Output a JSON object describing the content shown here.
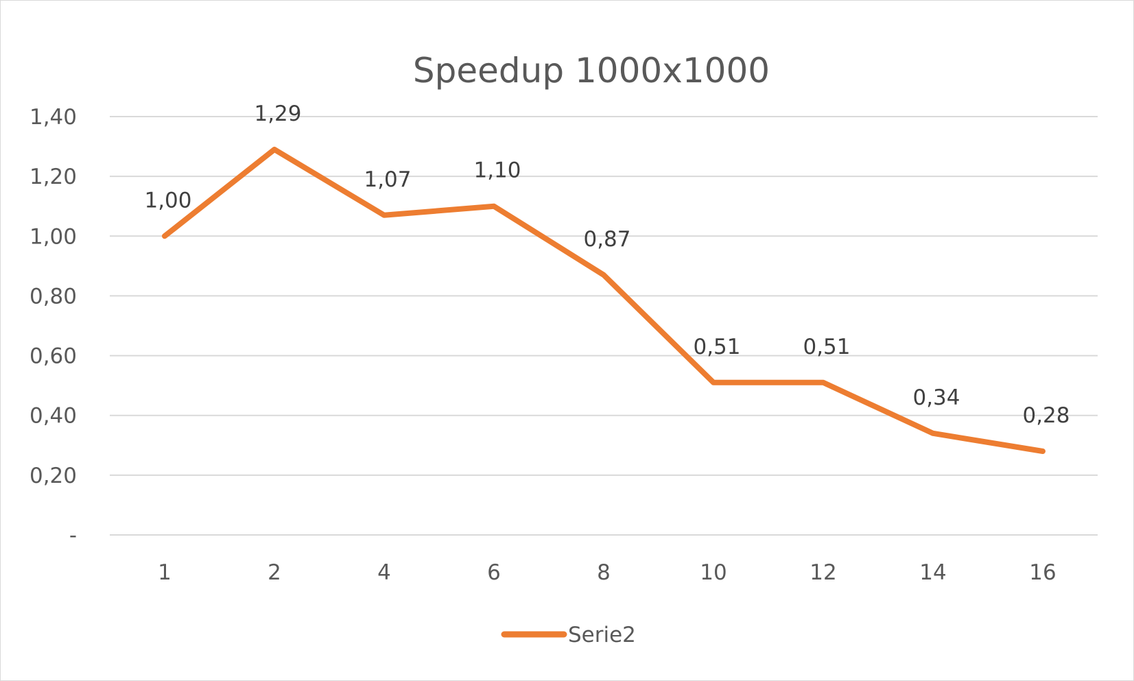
{
  "chart_data": {
    "type": "line",
    "title": "Speedup 1000x1000",
    "xlabel": "",
    "ylabel": "",
    "categories": [
      "1",
      "2",
      "4",
      "6",
      "8",
      "10",
      "12",
      "14",
      "16"
    ],
    "series": [
      {
        "name": "Serie2",
        "values": [
          1.0,
          1.29,
          1.07,
          1.1,
          0.87,
          0.51,
          0.51,
          0.34,
          0.28
        ],
        "labels": [
          "1,00",
          "1,29",
          "1,07",
          "1,10",
          "0,87",
          "0,51",
          "0,51",
          "0,34",
          "0,28"
        ],
        "color": "#ED7D31"
      }
    ],
    "ylim": [
      0,
      1.4
    ],
    "yticks": [
      0,
      0.2,
      0.4,
      0.6,
      0.8,
      1.0,
      1.2,
      1.4
    ],
    "ytick_labels": [
      "-",
      "0,20",
      "0,40",
      "0,60",
      "0,80",
      "1,00",
      "1,20",
      "1,40"
    ],
    "grid": true,
    "legend_position": "bottom",
    "colors": {
      "gridline": "#d9d9d9",
      "text": "#595959",
      "series": "#ED7D31"
    }
  }
}
